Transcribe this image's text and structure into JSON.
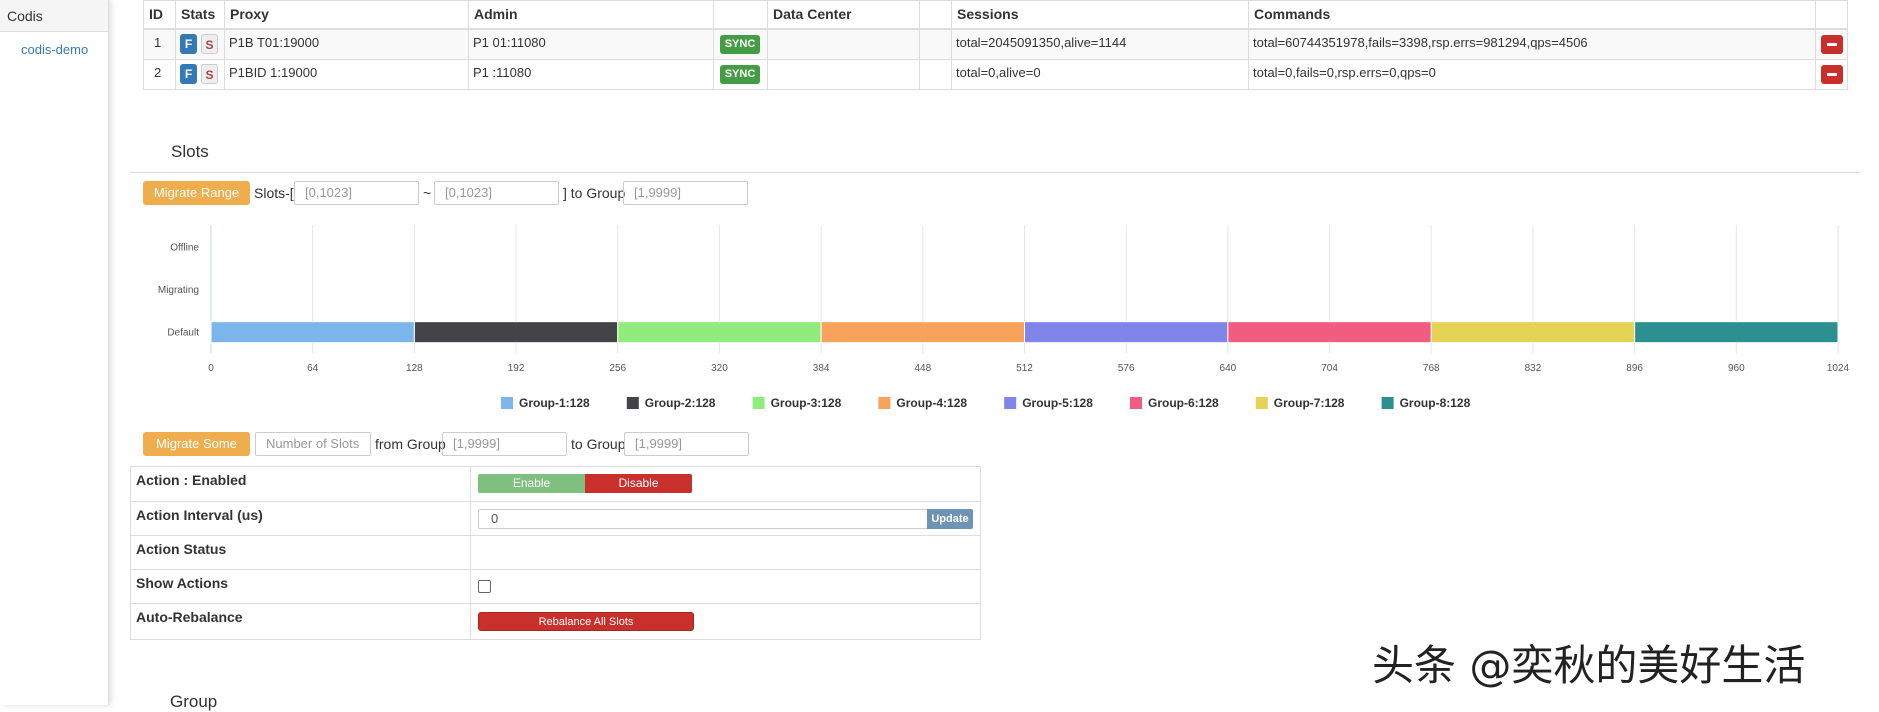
{
  "sidebar": {
    "title": "Codis",
    "items": [
      "codis-demo"
    ]
  },
  "proxy_table": {
    "headers": [
      "ID",
      "Stats",
      "Proxy",
      "Admin",
      "Data Center",
      "Sessions",
      "Commands"
    ],
    "rows": [
      {
        "id": 1,
        "stats": [
          "F",
          "S"
        ],
        "proxy": "P1B T01:19000",
        "admin": "P1 01:11080",
        "sync": "SYNC",
        "sessions": "total=2045091350,alive=1144",
        "commands": "total=60744351978,fails=3398,rsp.errs=981294,qps=4506"
      },
      {
        "id": 2,
        "stats": [
          "F",
          "S"
        ],
        "proxy": "P1BID 1:19000",
        "admin": "P1 :11080",
        "sync": "SYNC",
        "sessions": "total=0,alive=0",
        "commands": "total=0,fails=0,rsp.errs=0,qps=0"
      }
    ]
  },
  "slots": {
    "title": "Slots",
    "migrate_range": {
      "button": "Migrate Range",
      "prefix": "Slots-[",
      "from_placeholder": "[0,1023]",
      "separator": "~",
      "to_placeholder": "[0,1023]",
      "group_label": "] to Group",
      "group_placeholder": "[1,9999]"
    },
    "migrate_some": {
      "button": "Migrate Some",
      "count_placeholder": "Number of Slots",
      "from_label": "from Group",
      "from_placeholder": "[1,9999]",
      "to_label": "to Group",
      "to_placeholder": "[1,9999]"
    }
  },
  "action_table": {
    "rows": [
      {
        "label": "Action : Enabled",
        "buttons": [
          "Enable",
          "Disable"
        ]
      },
      {
        "label": "Action Interval (us)",
        "input": "0",
        "button": "Update"
      },
      {
        "label": "Action Status"
      },
      {
        "label": "Show Actions"
      },
      {
        "label": "Auto-Rebalance",
        "button": "Rebalance All Slots"
      }
    ]
  },
  "group_title": "Group",
  "watermark": "头条 @奕秋的美好生活",
  "chart_data": {
    "type": "bar",
    "orientation": "horizontal",
    "stacked": true,
    "categories": [
      "Offline",
      "Migrating",
      "Default"
    ],
    "series": [
      {
        "name": "Group-1:128",
        "color": "#7cb5ec",
        "values": [
          null,
          null,
          128
        ]
      },
      {
        "name": "Group-2:128",
        "color": "#434348",
        "values": [
          null,
          null,
          128
        ]
      },
      {
        "name": "Group-3:128",
        "color": "#90ed7d",
        "values": [
          null,
          null,
          128
        ]
      },
      {
        "name": "Group-4:128",
        "color": "#f7a35c",
        "values": [
          null,
          null,
          128
        ]
      },
      {
        "name": "Group-5:128",
        "color": "#8085e9",
        "values": [
          null,
          null,
          128
        ]
      },
      {
        "name": "Group-6:128",
        "color": "#f15c80",
        "values": [
          null,
          null,
          128
        ]
      },
      {
        "name": "Group-7:128",
        "color": "#e4d354",
        "values": [
          null,
          null,
          128
        ]
      },
      {
        "name": "Group-8:128",
        "color": "#2b908f",
        "values": [
          null,
          null,
          128
        ]
      }
    ],
    "xlim": [
      0,
      1024
    ],
    "xticks": [
      0,
      64,
      128,
      192,
      256,
      320,
      384,
      448,
      512,
      576,
      640,
      704,
      768,
      832,
      896,
      960,
      1024
    ],
    "grid": true
  }
}
